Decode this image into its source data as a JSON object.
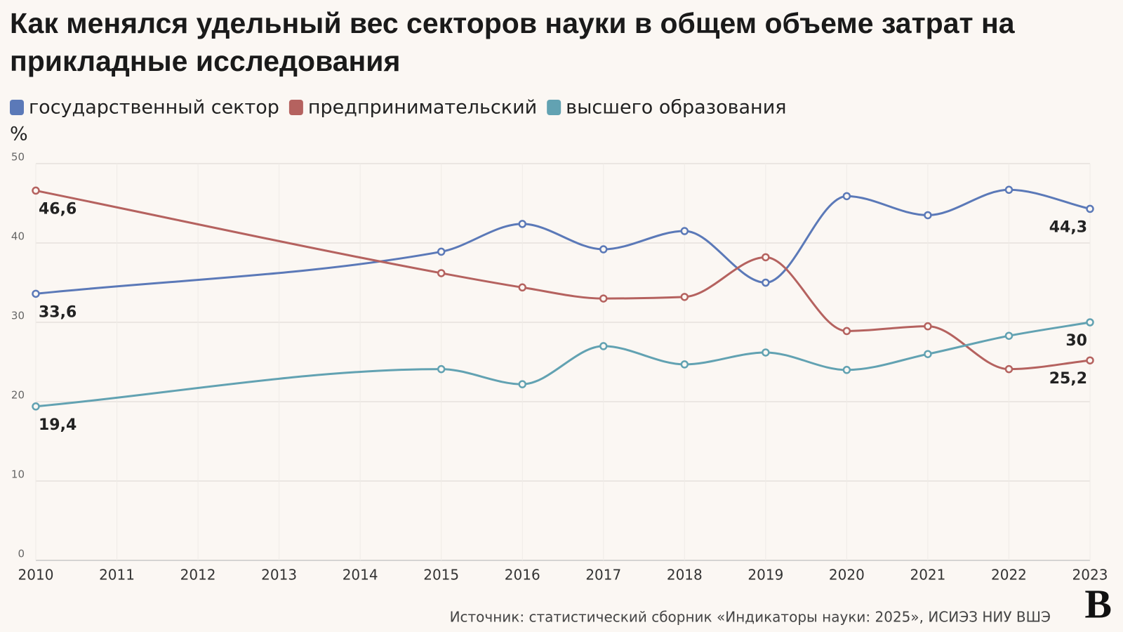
{
  "chart_data": {
    "type": "line",
    "title": "Как менялся удельный вес секторов науки в общем объеме затрат на прикладные исследования",
    "ylabel": "%",
    "x": [
      2010,
      2015,
      2016,
      2017,
      2018,
      2019,
      2020,
      2021,
      2022,
      2023
    ],
    "xlim": [
      2010,
      2023
    ],
    "xticks": [
      2010,
      2011,
      2012,
      2013,
      2014,
      2015,
      2016,
      2017,
      2018,
      2019,
      2020,
      2021,
      2022,
      2023
    ],
    "ylim": [
      0,
      50
    ],
    "yticks": [
      0,
      10,
      20,
      30,
      40,
      50
    ],
    "grid": true,
    "series": [
      {
        "name": "государственный сектор",
        "color": "#5b79b8",
        "values": [
          33.6,
          38.9,
          42.4,
          39.2,
          41.5,
          35.0,
          45.9,
          43.5,
          46.7,
          44.3
        ],
        "value_labels": [
          "33,6",
          null,
          null,
          null,
          null,
          null,
          null,
          null,
          null,
          "44,3"
        ]
      },
      {
        "name": "предпринимательский",
        "color": "#b5625f",
        "values": [
          46.6,
          36.2,
          34.4,
          33.0,
          33.2,
          38.2,
          28.9,
          29.5,
          24.1,
          25.2
        ],
        "value_labels": [
          "46,6",
          null,
          null,
          null,
          null,
          null,
          null,
          null,
          null,
          "25,2"
        ]
      },
      {
        "name": "высшего образования",
        "color": "#62a2b2",
        "values": [
          19.4,
          24.1,
          22.2,
          27.0,
          24.7,
          26.2,
          24.0,
          26.0,
          28.3,
          30
        ],
        "value_labels": [
          "19,4",
          null,
          null,
          null,
          null,
          null,
          null,
          null,
          null,
          "30"
        ]
      }
    ],
    "source": "Источник: статистический сборник «Индикаторы науки: 2025», ИСИЭЗ НИУ ВШЭ",
    "logo": "В"
  }
}
